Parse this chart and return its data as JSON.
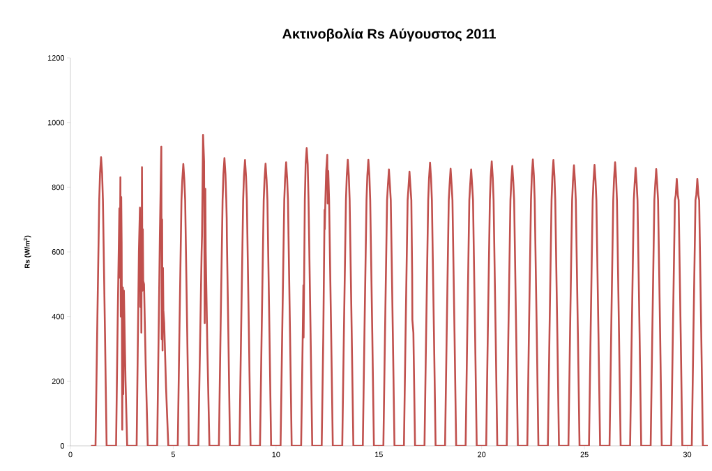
{
  "chart_data": {
    "type": "line",
    "title": "**Ακτινοβολία Rs Αύγουστος 2011**",
    "ylabel": "**Rs (W/m$^{2}$)**",
    "xlim": [
      0,
      31
    ],
    "xticks": [
      0,
      5,
      10,
      15,
      20,
      25,
      30
    ],
    "ylim": [
      0,
      1200
    ],
    "yticks": [
      0,
      200,
      400,
      600,
      800,
      1000,
      1200
    ],
    "series": [
      {
        "color": "#c0504d",
        "x": [
          1.0,
          1.22,
          1.3,
          1.4,
          1.44,
          1.49,
          1.54,
          1.58,
          1.68,
          1.76,
          2.22,
          2.3,
          2.38,
          2.4,
          2.43,
          2.45,
          2.47,
          2.49,
          2.52,
          2.55,
          2.57,
          2.6,
          2.68,
          2.76,
          3.22,
          3.33,
          3.38,
          3.4,
          3.43,
          3.45,
          3.48,
          3.5,
          3.52,
          3.54,
          3.58,
          3.66,
          3.76,
          4.22,
          4.35,
          4.42,
          4.44,
          4.46,
          4.48,
          4.5,
          4.52,
          4.56,
          4.65,
          4.76,
          5.22,
          5.3,
          5.4,
          5.44,
          5.49,
          5.54,
          5.58,
          5.68,
          5.72,
          5.73,
          5.76,
          6.22,
          6.38,
          6.4,
          6.45,
          6.5,
          6.53,
          6.56,
          6.58,
          6.66,
          6.76,
          7.22,
          7.3,
          7.4,
          7.44,
          7.49,
          7.54,
          7.58,
          7.6,
          7.61,
          7.68,
          7.76,
          8.22,
          8.3,
          8.4,
          8.44,
          8.49,
          8.54,
          8.58,
          8.68,
          8.76,
          9.22,
          9.3,
          9.4,
          9.44,
          9.49,
          9.54,
          9.58,
          9.68,
          9.76,
          10.22,
          10.3,
          10.4,
          10.44,
          10.49,
          10.54,
          10.58,
          10.68,
          10.76,
          11.22,
          11.3,
          11.33,
          11.34,
          11.4,
          11.44,
          11.49,
          11.54,
          11.58,
          11.68,
          11.76,
          12.22,
          12.3,
          12.36,
          12.37,
          12.4,
          12.44,
          12.49,
          12.51,
          12.54,
          12.58,
          12.68,
          12.76,
          13.22,
          13.3,
          13.4,
          13.44,
          13.49,
          13.54,
          13.58,
          13.68,
          13.76,
          14.22,
          14.3,
          14.4,
          14.44,
          14.49,
          14.54,
          14.58,
          14.68,
          14.76,
          15.22,
          15.3,
          15.4,
          15.44,
          15.49,
          15.54,
          15.58,
          15.68,
          15.76,
          16.22,
          16.3,
          16.4,
          16.44,
          16.49,
          16.54,
          16.58,
          16.62,
          16.63,
          16.68,
          16.76,
          17.22,
          17.3,
          17.4,
          17.44,
          17.49,
          17.54,
          17.58,
          17.68,
          17.76,
          18.22,
          18.3,
          18.4,
          18.44,
          18.49,
          18.54,
          18.58,
          18.68,
          18.76,
          19.22,
          19.3,
          19.4,
          19.44,
          19.49,
          19.54,
          19.58,
          19.68,
          19.76,
          20.22,
          20.3,
          20.4,
          20.44,
          20.49,
          20.54,
          20.58,
          20.68,
          20.76,
          21.22,
          21.3,
          21.4,
          21.44,
          21.49,
          21.54,
          21.58,
          21.68,
          21.76,
          22.22,
          22.3,
          22.4,
          22.44,
          22.49,
          22.54,
          22.58,
          22.68,
          22.76,
          23.22,
          23.3,
          23.4,
          23.44,
          23.49,
          23.54,
          23.58,
          23.68,
          23.76,
          24.22,
          24.3,
          24.4,
          24.44,
          24.49,
          24.54,
          24.58,
          24.68,
          24.76,
          25.22,
          25.3,
          25.4,
          25.44,
          25.49,
          25.54,
          25.58,
          25.68,
          25.76,
          26.22,
          26.3,
          26.4,
          26.44,
          26.49,
          26.54,
          26.58,
          26.68,
          26.76,
          27.22,
          27.3,
          27.4,
          27.44,
          27.49,
          27.54,
          27.58,
          27.68,
          27.76,
          28.22,
          28.3,
          28.4,
          28.44,
          28.49,
          28.54,
          28.58,
          28.68,
          28.76,
          29.22,
          29.3,
          29.4,
          29.44,
          29.49,
          29.54,
          29.58,
          29.68,
          29.76,
          30.22,
          30.3,
          30.4,
          30.44,
          30.49,
          30.54,
          30.58,
          30.68,
          30.76,
          31.0
        ],
        "values": [
          0,
          0,
          350,
          760,
          843,
          893,
          843,
          760,
          350,
          0,
          0,
          400,
          735,
          520,
          831,
          400,
          770,
          630,
          50,
          490,
          160,
          480,
          200,
          0,
          0,
          600,
          737,
          430,
          680,
          350,
          862,
          480,
          670,
          510,
          500,
          250,
          0,
          0,
          650,
          926,
          330,
          700,
          295,
          550,
          420,
          380,
          180,
          0,
          0,
          350,
          760,
          822,
          872,
          822,
          760,
          350,
          185,
          165,
          0,
          0,
          600,
          650,
          962,
          880,
          380,
          795,
          600,
          300,
          0,
          0,
          350,
          760,
          840,
          890,
          840,
          760,
          705,
          640,
          350,
          0,
          0,
          350,
          760,
          834,
          884,
          834,
          760,
          350,
          0,
          0,
          350,
          760,
          823,
          873,
          823,
          760,
          350,
          0,
          0,
          350,
          760,
          827,
          877,
          827,
          760,
          350,
          0,
          0,
          350,
          497,
          335,
          760,
          871,
          921,
          871,
          760,
          350,
          0,
          0,
          350,
          730,
          670,
          760,
          850,
          900,
          750,
          850,
          760,
          350,
          0,
          0,
          350,
          760,
          835,
          885,
          835,
          760,
          350,
          0,
          0,
          350,
          760,
          835,
          885,
          835,
          760,
          350,
          0,
          0,
          350,
          760,
          805,
          855,
          805,
          760,
          350,
          0,
          0,
          350,
          760,
          798,
          848,
          798,
          760,
          530,
          390,
          350,
          0,
          0,
          350,
          760,
          826,
          876,
          826,
          760,
          350,
          0,
          0,
          350,
          760,
          807,
          857,
          807,
          760,
          350,
          0,
          0,
          350,
          760,
          805,
          855,
          805,
          760,
          350,
          0,
          0,
          350,
          760,
          830,
          880,
          830,
          760,
          350,
          0,
          0,
          350,
          760,
          816,
          866,
          816,
          760,
          350,
          0,
          0,
          350,
          760,
          836,
          886,
          836,
          760,
          350,
          0,
          0,
          350,
          760,
          834,
          884,
          834,
          760,
          350,
          0,
          0,
          350,
          760,
          818,
          868,
          818,
          760,
          350,
          0,
          0,
          350,
          760,
          819,
          869,
          819,
          760,
          350,
          0,
          0,
          350,
          760,
          827,
          877,
          827,
          760,
          350,
          0,
          0,
          350,
          760,
          810,
          860,
          810,
          760,
          350,
          0,
          0,
          350,
          760,
          806,
          856,
          806,
          760,
          350,
          0,
          0,
          350,
          760,
          776,
          826,
          776,
          760,
          350,
          0,
          0,
          350,
          760,
          776,
          826,
          776,
          760,
          350,
          0,
          0
        ]
      }
    ]
  }
}
